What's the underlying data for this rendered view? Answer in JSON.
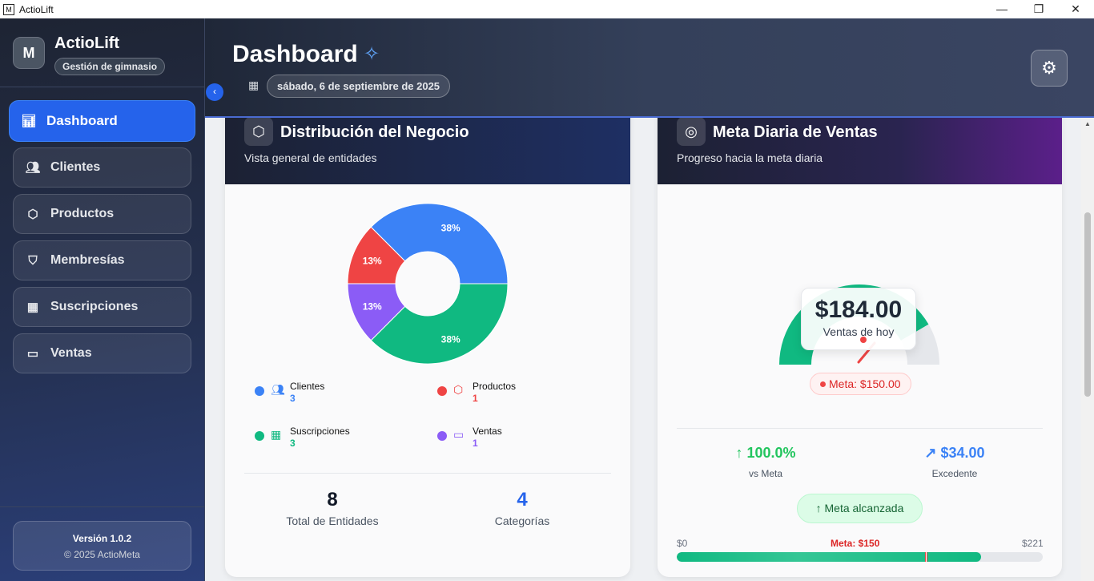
{
  "window": {
    "title": "ActioLift",
    "minimize": "—",
    "restore": "❐",
    "close": "✕"
  },
  "sidebar": {
    "brand": "ActioLift",
    "tagline": "Gestión de gimnasio",
    "logo": "M",
    "items": [
      {
        "label": "Dashboard",
        "icon": "bar-chart-icon"
      },
      {
        "label": "Clientes",
        "icon": "users-icon"
      },
      {
        "label": "Productos",
        "icon": "box-icon"
      },
      {
        "label": "Membresías",
        "icon": "tags-icon"
      },
      {
        "label": "Suscripciones",
        "icon": "calendar-icon"
      },
      {
        "label": "Ventas",
        "icon": "credit-card-icon"
      }
    ],
    "version": "Versión 1.0.2",
    "copyright": "© 2025 ActioMeta"
  },
  "header": {
    "title": "Dashboard",
    "date": "sábado, 6 de septiembre de 2025"
  },
  "distribution": {
    "title": "Distribución del Negocio",
    "subtitle": "Vista general de entidades",
    "chart_data": {
      "type": "pie",
      "categories": [
        "Clientes",
        "Productos",
        "Suscripciones",
        "Ventas"
      ],
      "values": [
        3,
        1,
        3,
        1
      ],
      "labels": [
        "38%",
        "13%",
        "38%",
        "13%"
      ],
      "colors": {
        "Clientes": "#3b82f6",
        "Productos": "#ef4444",
        "Suscripciones": "#10b981",
        "Ventas": "#8b5cf6"
      }
    },
    "total_value": "8",
    "total_label": "Total de Entidades",
    "categories_value": "4",
    "categories_label": "Categorías"
  },
  "goal": {
    "title": "Meta Diaria de Ventas",
    "subtitle": "Progreso hacia la meta diaria",
    "sales": "$184.00",
    "sales_label": "Ventas de hoy",
    "meta_badge": "Meta: $150.00",
    "vs_value": "100.0%",
    "vs_label": "vs Meta",
    "excess_value": "$34.00",
    "excess_label": "Excedente",
    "status": "Meta alcanzada",
    "bar_min": "$0",
    "bar_meta": "Meta: $150",
    "bar_max": "$221",
    "gauge_value": 184,
    "gauge_max": 221,
    "meta_value": 150,
    "colors": {
      "fill": "#10b981",
      "track": "#e5e7eb",
      "meta": "#ef4444"
    }
  }
}
